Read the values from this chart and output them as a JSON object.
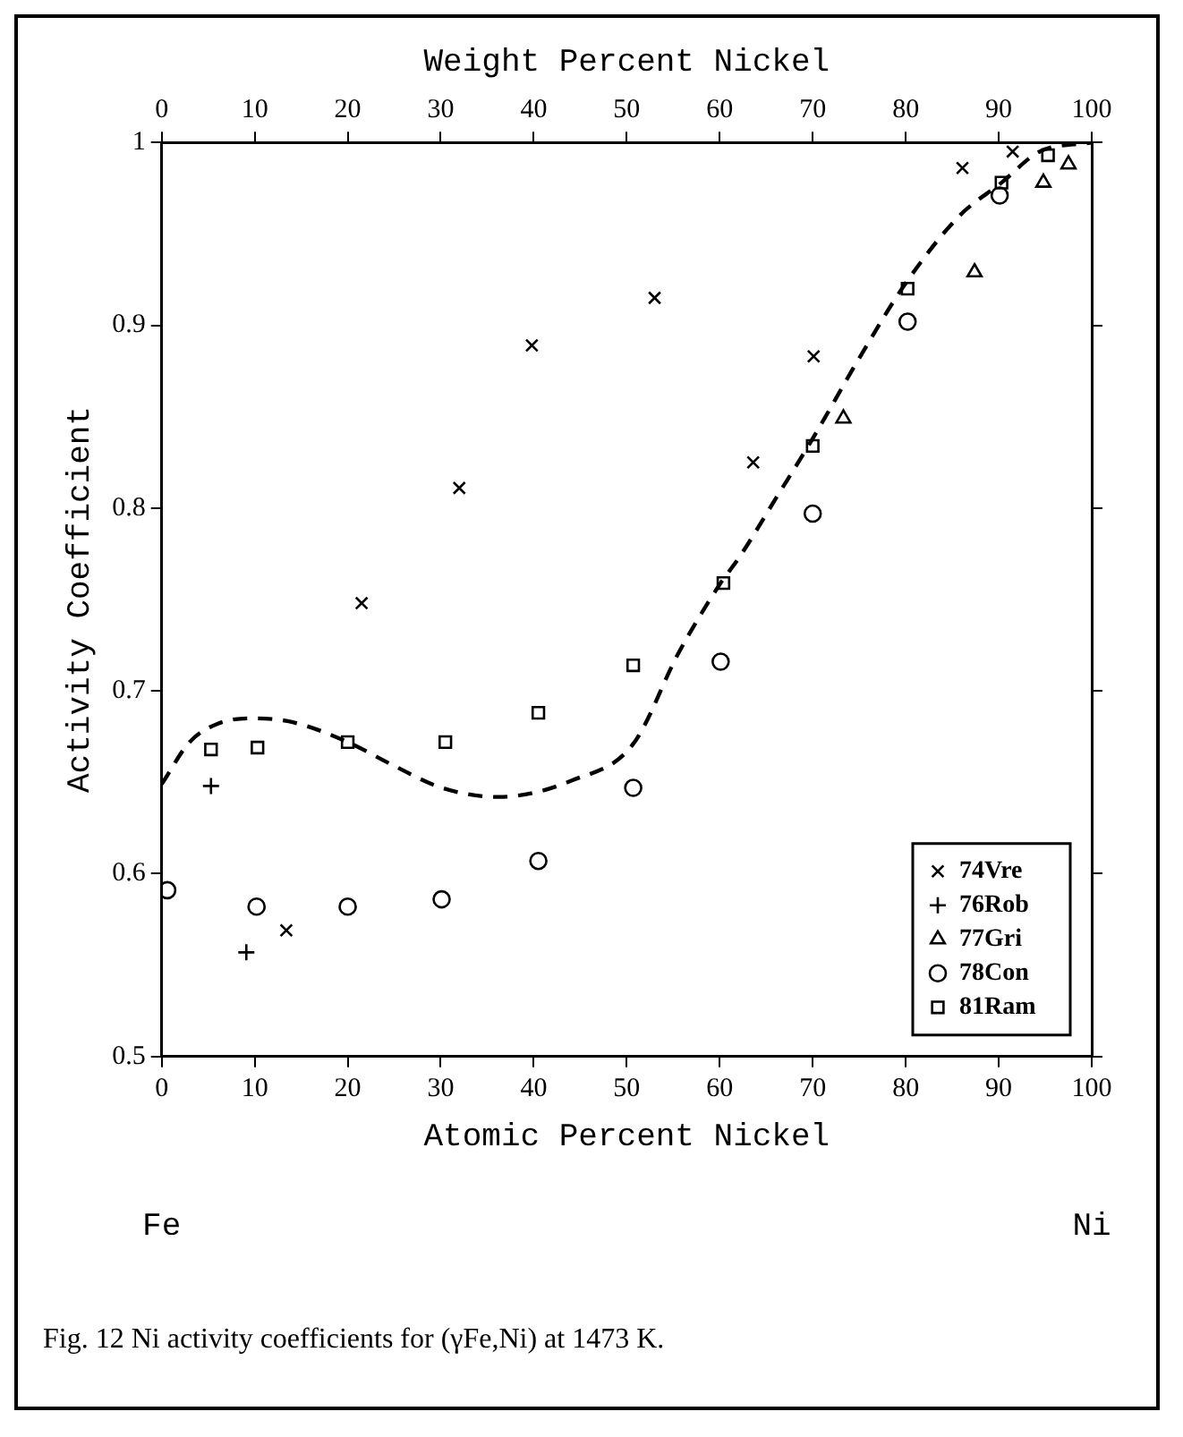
{
  "chart_data": {
    "type": "scatter",
    "xlabel": "Atomic Percent Nickel",
    "x2label": "Weight Percent Nickel",
    "ylabel": "Activity Coefficient",
    "xlim": [
      0,
      100
    ],
    "xticks": [
      0,
      10,
      20,
      30,
      40,
      50,
      60,
      70,
      80,
      90,
      100
    ],
    "x2lim": [
      0,
      100
    ],
    "x2ticks": [
      0,
      10,
      20,
      30,
      40,
      50,
      60,
      70,
      80,
      90,
      100
    ],
    "ylim": [
      0.5,
      1
    ],
    "yticks": [
      0.5,
      0.6,
      0.7,
      0.8,
      0.9,
      1
    ],
    "grid": false,
    "legend": "bottom right",
    "series": [
      {
        "name": "74Vre",
        "color": "#000000",
        "marker": "cross",
        "x": [
          13.4,
          21.5,
          32.0,
          39.8,
          53.0,
          63.6,
          70.1,
          86.1,
          91.5
        ],
        "values": [
          0.569,
          0.748,
          0.811,
          0.889,
          0.915,
          0.825,
          0.883,
          0.986,
          0.995
        ]
      },
      {
        "name": "76Rob",
        "color": "#000000",
        "marker": "plus",
        "x": [
          5.3,
          9.1
        ],
        "values": [
          0.648,
          0.557
        ]
      },
      {
        "name": "77Gri",
        "color": "#000000",
        "marker": "triangle",
        "x": [
          73.3,
          87.4,
          94.8,
          97.5
        ],
        "values": [
          0.849,
          0.929,
          0.978,
          0.988
        ]
      },
      {
        "name": "78Con",
        "color": "#000000",
        "marker": "circle",
        "x": [
          0.6,
          10.2,
          20.0,
          30.1,
          40.5,
          50.7,
          60.1,
          70.0,
          80.2,
          90.1
        ],
        "values": [
          0.591,
          0.582,
          0.582,
          0.586,
          0.607,
          0.647,
          0.716,
          0.797,
          0.902,
          0.971
        ]
      },
      {
        "name": "81Ram",
        "color": "#000000",
        "marker": "square",
        "x": [
          5.3,
          10.3,
          20.0,
          30.5,
          40.5,
          50.7,
          60.4,
          70.0,
          80.2,
          90.3,
          95.3
        ],
        "values": [
          0.668,
          0.669,
          0.672,
          0.672,
          0.688,
          0.714,
          0.759,
          0.834,
          0.92,
          0.978,
          0.993
        ]
      },
      {
        "type": "line",
        "color": "#000000",
        "marker": "none",
        "line_style": "dashed",
        "x": [
          0,
          3,
          6,
          9.6,
          14,
          20,
          25,
          30.1,
          36.2,
          44.1,
          50.7,
          55.6,
          60.1,
          62.1,
          66,
          70,
          75,
          80,
          85.8,
          90.3,
          94.4,
          100
        ],
        "values": [
          0.649,
          0.672,
          0.682,
          0.685,
          0.683,
          0.672,
          0.659,
          0.647,
          0.642,
          0.651,
          0.671,
          0.721,
          0.759,
          0.773,
          0.805,
          0.838,
          0.882,
          0.923,
          0.96,
          0.978,
          0.995,
          1.0
        ]
      }
    ],
    "annotations": [
      "Fe",
      "Ni",
      "Fig. 12 Ni activity coefficients for (γFe,Ni) at 1473 K."
    ]
  }
}
